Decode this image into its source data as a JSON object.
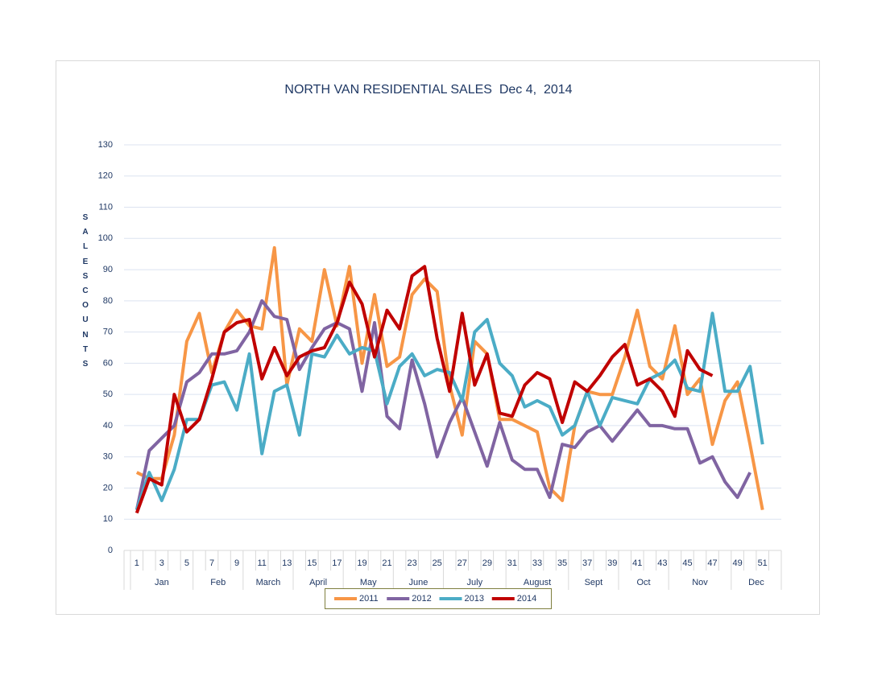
{
  "chart_data": {
    "type": "line",
    "title": "NORTH VAN RESIDENTIAL SALES  Dec 4,  2014",
    "y_label": "SALES COUNTS",
    "categories": [
      1,
      null,
      3,
      null,
      5,
      null,
      7,
      null,
      9,
      null,
      11,
      null,
      13,
      null,
      15,
      null,
      17,
      null,
      19,
      null,
      21,
      null,
      23,
      null,
      25,
      null,
      27,
      null,
      29,
      null,
      31,
      null,
      33,
      null,
      35,
      null,
      37,
      null,
      39,
      null,
      41,
      null,
      43,
      null,
      45,
      null,
      47,
      null,
      49,
      null,
      51,
      null
    ],
    "months": [
      "Jan",
      "Jan",
      "Jan",
      "Jan",
      "Jan",
      "Feb",
      "Feb",
      "Feb",
      "Feb",
      "March",
      "March",
      "March",
      "March",
      "April",
      "April",
      "April",
      "April",
      "May",
      "May",
      "May",
      "May",
      "June",
      "June",
      "June",
      "June",
      "July",
      "July",
      "July",
      "July",
      "July",
      "August",
      "August",
      "August",
      "August",
      "August",
      "Sept",
      "Sept",
      "Sept",
      "Sept",
      "Oct",
      "Oct",
      "Oct",
      "Oct",
      "Nov",
      "Nov",
      "Nov",
      "Nov",
      "Nov",
      "Dec",
      "Dec",
      "Dec",
      "Dec"
    ],
    "ylim": [
      0,
      130
    ],
    "yticks": [
      0,
      10,
      20,
      30,
      40,
      50,
      60,
      70,
      80,
      90,
      100,
      110,
      120,
      130
    ],
    "grid": true,
    "legend": "bottom",
    "series": [
      {
        "name": "2011",
        "color": "#f79646",
        "values": [
          25,
          23,
          23,
          37,
          67,
          76,
          57,
          70,
          77,
          72,
          71,
          97,
          53,
          71,
          67,
          90,
          72,
          91,
          60,
          82,
          59,
          62,
          82,
          87,
          83,
          53,
          37,
          67,
          63,
          42,
          42,
          40,
          38,
          20,
          16,
          40,
          51,
          50,
          50,
          62,
          77,
          59,
          55,
          72,
          50,
          55,
          34,
          48,
          54,
          34,
          13,
          null
        ]
      },
      {
        "name": "2012",
        "color": "#8064a2",
        "values": [
          13,
          32,
          36,
          40,
          54,
          57,
          63,
          63,
          64,
          70,
          80,
          75,
          74,
          58,
          65,
          71,
          73,
          71,
          51,
          73,
          43,
          39,
          61,
          47,
          30,
          41,
          49,
          38,
          27,
          41,
          29,
          26,
          26,
          17,
          34,
          33,
          38,
          40,
          35,
          40,
          45,
          40,
          40,
          39,
          39,
          28,
          30,
          22,
          17,
          25,
          null,
          null
        ]
      },
      {
        "name": "2013",
        "color": "#4bacc6",
        "values": [
          13,
          25,
          16,
          26,
          42,
          42,
          53,
          54,
          45,
          63,
          31,
          51,
          53,
          37,
          63,
          62,
          69,
          63,
          65,
          64,
          47,
          59,
          63,
          56,
          58,
          57,
          48,
          70,
          74,
          60,
          56,
          46,
          48,
          46,
          37,
          40,
          51,
          40,
          49,
          48,
          47,
          55,
          57,
          61,
          52,
          51,
          76,
          51,
          51,
          59,
          34,
          null
        ]
      },
      {
        "name": "2014",
        "color": "#c00000",
        "values": [
          12,
          23,
          21,
          50,
          38,
          42,
          55,
          70,
          73,
          74,
          55,
          65,
          56,
          62,
          64,
          65,
          73,
          86,
          79,
          62,
          77,
          71,
          88,
          91,
          68,
          51,
          76,
          53,
          63,
          44,
          43,
          53,
          57,
          55,
          41,
          54,
          51,
          56,
          62,
          66,
          53,
          55,
          51,
          43,
          64,
          58,
          56,
          null,
          null,
          null,
          null,
          null
        ]
      }
    ]
  }
}
